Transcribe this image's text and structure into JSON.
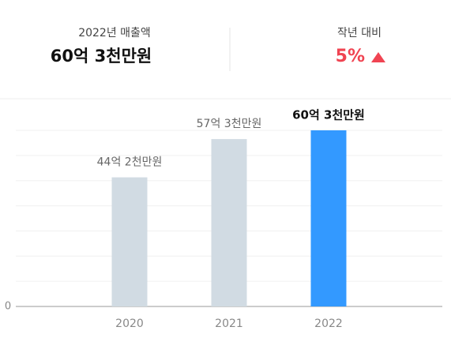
{
  "header": {
    "sales_label": "2022년 매출액",
    "sales_value": "60억 3천만원",
    "change_label": "작년 대비",
    "change_value": "5%"
  },
  "chart_data": {
    "type": "bar",
    "categories": [
      "2020",
      "2021",
      "2022"
    ],
    "values": [
      4420000000,
      5730000000,
      6030000000
    ],
    "value_labels": [
      "44억 2천만원",
      "57억 3천만원",
      "60억 3천만원"
    ],
    "colors": [
      "#d1dbe3",
      "#d1dbe3",
      "#3399ff"
    ],
    "ylim": [
      0,
      6030000000
    ],
    "yticks": [
      0
    ],
    "grid": true
  }
}
